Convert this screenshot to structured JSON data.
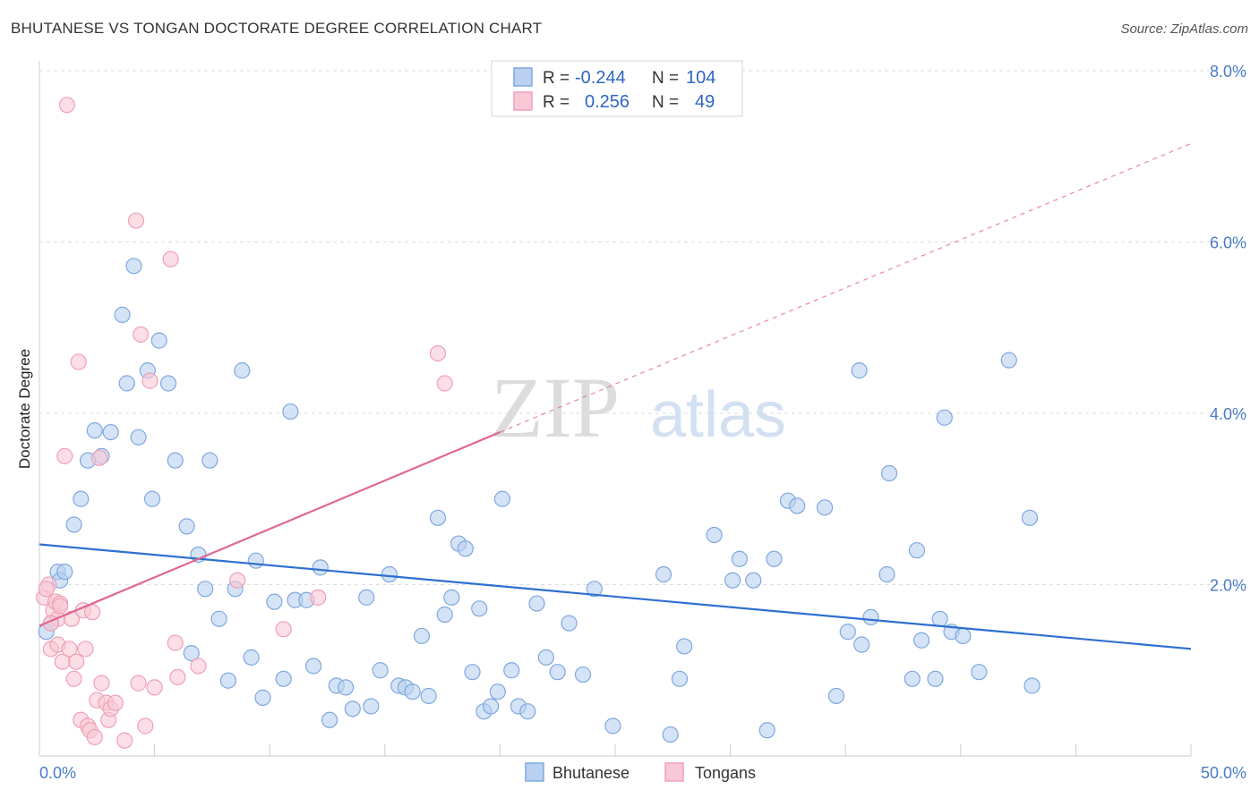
{
  "chart_data": {
    "type": "scatter",
    "title": "BHUTANESE VS TONGAN DOCTORATE DEGREE CORRELATION CHART",
    "source": "Source: ZipAtlas.com",
    "watermark": {
      "bold": "ZIP",
      "light": "atlas"
    },
    "xlabel": "",
    "ylabel": "Doctorate Degree",
    "xlim": [
      0,
      50
    ],
    "ylim": [
      0,
      8.0
    ],
    "x_tick_labels": {
      "left": "0.0%",
      "right": "50.0%"
    },
    "y_ticks": [
      {
        "value": 2.0,
        "label": "2.0%"
      },
      {
        "value": 4.0,
        "label": "4.0%"
      },
      {
        "value": 6.0,
        "label": "6.0%"
      },
      {
        "value": 8.0,
        "label": "8.0%"
      }
    ],
    "legend": {
      "r_label": "R =",
      "n_label": "N =",
      "entries": [
        {
          "name": "Bhutanese",
          "r": "-0.244",
          "n": "104"
        },
        {
          "name": "Tongans",
          "r": "0.256",
          "n": "49"
        }
      ]
    },
    "series": [
      {
        "name": "Bhutanese",
        "color": "#7fa8e0",
        "fill": "#b9d0f0",
        "trend": {
          "x0": 0,
          "y0": 2.47,
          "x1": 50,
          "y1": 1.25,
          "color": "#2f6fd0"
        },
        "points": [
          [
            0.3,
            1.45
          ],
          [
            0.5,
            1.55
          ],
          [
            0.8,
            2.15
          ],
          [
            0.9,
            2.05
          ],
          [
            1.1,
            2.15
          ],
          [
            1.5,
            2.7
          ],
          [
            1.8,
            3.0
          ],
          [
            2.1,
            3.45
          ],
          [
            2.4,
            3.8
          ],
          [
            2.7,
            3.5
          ],
          [
            3.1,
            3.78
          ],
          [
            3.6,
            5.15
          ],
          [
            3.8,
            4.35
          ],
          [
            4.1,
            5.72
          ],
          [
            4.3,
            3.72
          ],
          [
            4.7,
            4.5
          ],
          [
            4.9,
            3.0
          ],
          [
            5.2,
            4.85
          ],
          [
            5.6,
            4.35
          ],
          [
            5.9,
            3.45
          ],
          [
            6.4,
            2.68
          ],
          [
            6.6,
            1.2
          ],
          [
            6.9,
            2.35
          ],
          [
            7.2,
            1.95
          ],
          [
            7.4,
            3.45
          ],
          [
            7.8,
            1.6
          ],
          [
            8.2,
            0.88
          ],
          [
            8.5,
            1.95
          ],
          [
            8.8,
            4.5
          ],
          [
            9.2,
            1.15
          ],
          [
            9.4,
            2.28
          ],
          [
            9.7,
            0.68
          ],
          [
            10.2,
            1.8
          ],
          [
            10.6,
            0.9
          ],
          [
            10.9,
            4.02
          ],
          [
            11.1,
            1.82
          ],
          [
            11.6,
            1.82
          ],
          [
            11.9,
            1.05
          ],
          [
            12.2,
            2.2
          ],
          [
            12.6,
            0.42
          ],
          [
            12.9,
            0.82
          ],
          [
            13.3,
            0.8
          ],
          [
            13.6,
            0.55
          ],
          [
            14.2,
            1.85
          ],
          [
            14.4,
            0.58
          ],
          [
            14.8,
            1.0
          ],
          [
            15.2,
            2.12
          ],
          [
            15.6,
            0.82
          ],
          [
            15.9,
            0.8
          ],
          [
            16.2,
            0.75
          ],
          [
            16.6,
            1.4
          ],
          [
            16.9,
            0.7
          ],
          [
            17.3,
            2.78
          ],
          [
            17.6,
            1.65
          ],
          [
            17.9,
            1.85
          ],
          [
            18.2,
            2.48
          ],
          [
            18.5,
            2.42
          ],
          [
            18.8,
            0.98
          ],
          [
            19.1,
            1.72
          ],
          [
            19.3,
            0.52
          ],
          [
            19.6,
            0.58
          ],
          [
            19.9,
            0.75
          ],
          [
            20.1,
            3.0
          ],
          [
            20.5,
            1.0
          ],
          [
            20.8,
            0.58
          ],
          [
            21.2,
            0.52
          ],
          [
            21.6,
            1.78
          ],
          [
            22.0,
            1.15
          ],
          [
            22.5,
            0.98
          ],
          [
            23.0,
            1.55
          ],
          [
            23.6,
            0.95
          ],
          [
            24.1,
            1.95
          ],
          [
            24.9,
            0.35
          ],
          [
            27.1,
            2.12
          ],
          [
            27.4,
            0.25
          ],
          [
            27.8,
            0.9
          ],
          [
            28.0,
            1.28
          ],
          [
            29.3,
            2.58
          ],
          [
            30.1,
            2.05
          ],
          [
            30.4,
            2.3
          ],
          [
            31.0,
            2.05
          ],
          [
            31.6,
            0.3
          ],
          [
            31.9,
            2.3
          ],
          [
            32.5,
            2.98
          ],
          [
            32.9,
            2.92
          ],
          [
            34.1,
            2.9
          ],
          [
            34.6,
            0.7
          ],
          [
            35.1,
            1.45
          ],
          [
            35.6,
            4.5
          ],
          [
            35.7,
            1.3
          ],
          [
            36.1,
            1.62
          ],
          [
            36.8,
            2.12
          ],
          [
            36.9,
            3.3
          ],
          [
            37.9,
            0.9
          ],
          [
            38.1,
            2.4
          ],
          [
            38.3,
            1.35
          ],
          [
            38.9,
            0.9
          ],
          [
            39.1,
            1.6
          ],
          [
            39.3,
            3.95
          ],
          [
            39.6,
            1.45
          ],
          [
            40.1,
            1.4
          ],
          [
            40.8,
            0.98
          ],
          [
            42.1,
            4.62
          ],
          [
            43.1,
            0.82
          ],
          [
            43.0,
            2.78
          ]
        ]
      },
      {
        "name": "Tongans",
        "color": "#f0a0b8",
        "fill": "#f8c8d6",
        "trend": {
          "x0": 0,
          "y0": 1.52,
          "x1": 20,
          "y1": 3.78,
          "color": "#e06890",
          "dashed_to_x": 50,
          "dashed_to_y": 7.15
        },
        "points": [
          [
            0.2,
            1.85
          ],
          [
            0.4,
            2.0
          ],
          [
            0.5,
            1.25
          ],
          [
            0.6,
            1.7
          ],
          [
            0.7,
            1.8
          ],
          [
            0.8,
            1.3
          ],
          [
            0.8,
            1.6
          ],
          [
            0.9,
            1.78
          ],
          [
            1.0,
            1.1
          ],
          [
            1.1,
            3.5
          ],
          [
            1.2,
            7.6
          ],
          [
            1.3,
            1.25
          ],
          [
            1.4,
            1.6
          ],
          [
            1.5,
            0.9
          ],
          [
            1.6,
            1.1
          ],
          [
            1.7,
            4.6
          ],
          [
            1.8,
            0.42
          ],
          [
            1.9,
            1.7
          ],
          [
            2.0,
            1.25
          ],
          [
            2.1,
            0.35
          ],
          [
            2.2,
            0.3
          ],
          [
            2.3,
            1.68
          ],
          [
            2.4,
            0.22
          ],
          [
            2.5,
            0.65
          ],
          [
            2.6,
            3.48
          ],
          [
            2.7,
            0.85
          ],
          [
            2.9,
            0.62
          ],
          [
            3.0,
            0.42
          ],
          [
            3.1,
            0.55
          ],
          [
            3.3,
            0.62
          ],
          [
            3.7,
            0.18
          ],
          [
            4.2,
            6.25
          ],
          [
            4.3,
            0.85
          ],
          [
            4.4,
            4.92
          ],
          [
            4.6,
            0.35
          ],
          [
            4.8,
            4.38
          ],
          [
            5.0,
            0.8
          ],
          [
            5.7,
            5.8
          ],
          [
            5.9,
            1.32
          ],
          [
            6.0,
            0.92
          ],
          [
            6.9,
            1.05
          ],
          [
            8.6,
            2.05
          ],
          [
            10.6,
            1.48
          ],
          [
            12.1,
            1.85
          ],
          [
            17.3,
            4.7
          ],
          [
            17.6,
            4.35
          ],
          [
            0.3,
            1.95
          ],
          [
            0.5,
            1.55
          ],
          [
            0.9,
            1.75
          ]
        ]
      }
    ]
  }
}
